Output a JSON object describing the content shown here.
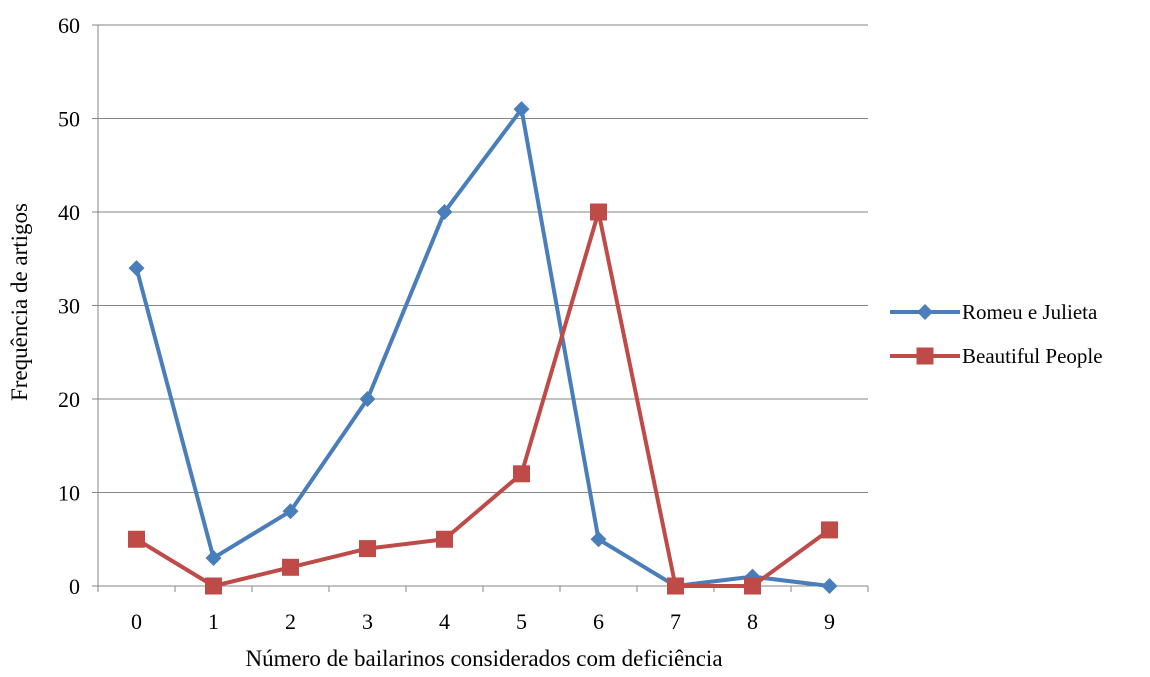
{
  "chart_data": {
    "type": "line",
    "title": "",
    "xlabel": "Número de bailarinos considerados com deficiência",
    "ylabel": "Frequência de artigos",
    "categories": [
      "0",
      "1",
      "2",
      "3",
      "4",
      "5",
      "6",
      "7",
      "8",
      "9"
    ],
    "ylim": [
      0,
      60
    ],
    "yticks": [
      "0",
      "10",
      "20",
      "30",
      "40",
      "50",
      "60"
    ],
    "grid": true,
    "legend_position": "right",
    "series": [
      {
        "name": "Romeu e Julieta",
        "values": [
          34,
          3,
          8,
          20,
          40,
          51,
          5,
          0,
          1,
          0
        ],
        "color": "#4a7ebb",
        "marker": "diamond"
      },
      {
        "name": "Beautiful People",
        "values": [
          5,
          0,
          2,
          4,
          5,
          12,
          40,
          0,
          0,
          6
        ],
        "color": "#be4b48",
        "marker": "square"
      }
    ]
  }
}
